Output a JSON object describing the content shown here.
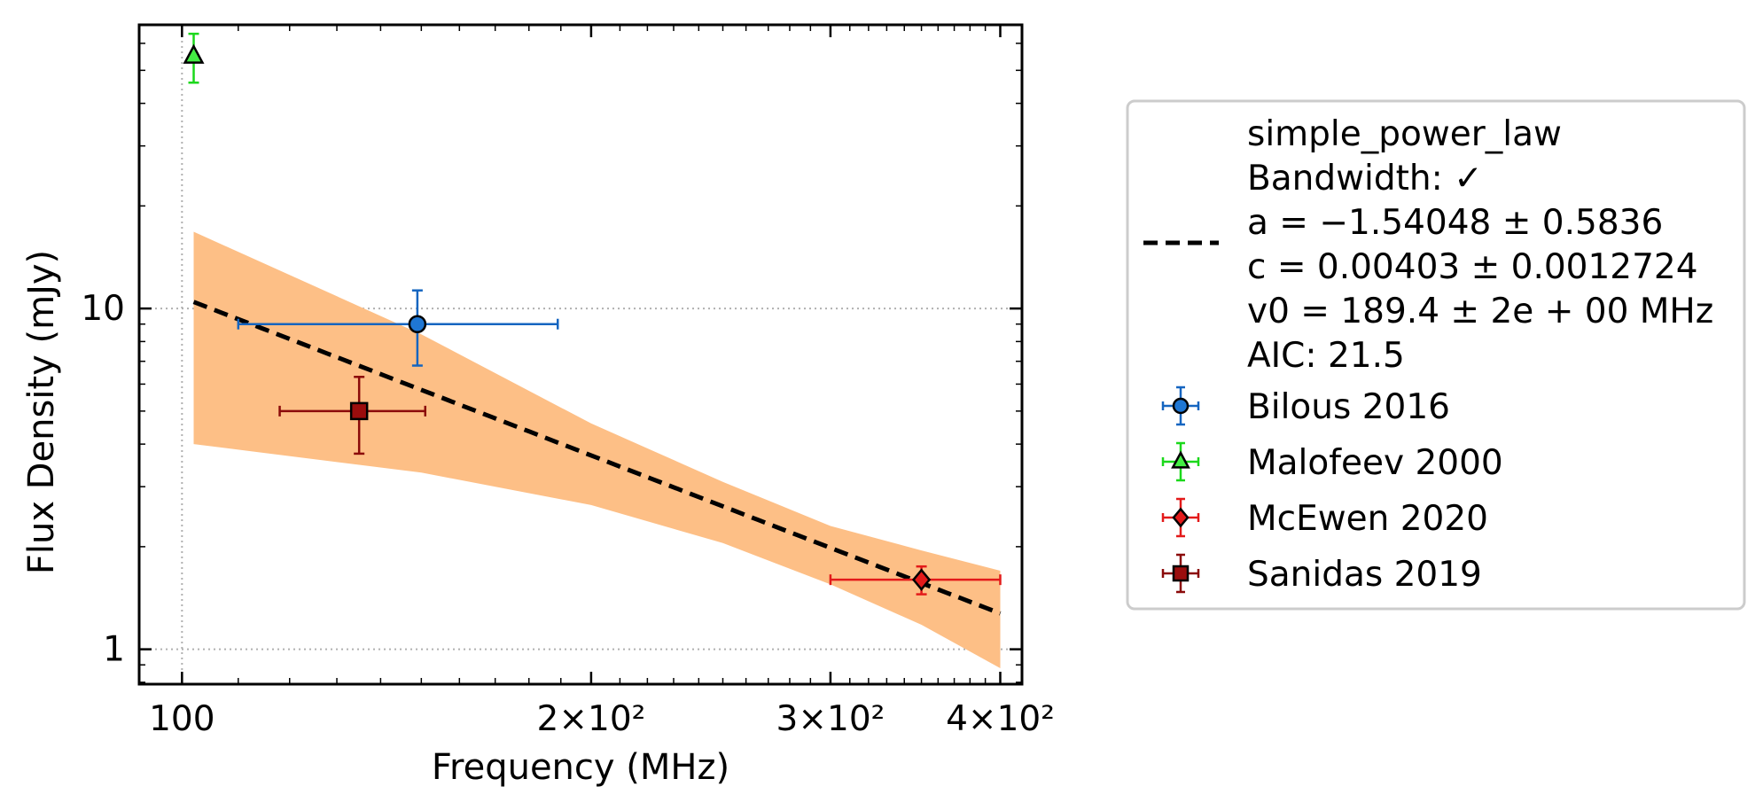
{
  "chart_data": {
    "type": "scatter",
    "xlabel": "Frequency (MHz)",
    "ylabel": "Flux Density (mJy)",
    "xscale": "log",
    "yscale": "log",
    "xlim": [
      93,
      415
    ],
    "ylim": [
      0.79,
      68
    ],
    "grid": true,
    "x_ticks": [
      {
        "value": 100,
        "label": "100"
      },
      {
        "value": 200,
        "label": "2×10²"
      },
      {
        "value": 300,
        "label": "3×10²"
      },
      {
        "value": 400,
        "label": "4×10²"
      }
    ],
    "y_ticks": [
      {
        "value": 1,
        "label": "1"
      },
      {
        "value": 10,
        "label": "10"
      }
    ],
    "legend_position": "outside-right",
    "fit": {
      "model": "simple_power_law",
      "legend_lines": [
        "simple_power_law",
        "Bandwidth: ✓",
        "a = −1.54048 ± 0.5836",
        "c = 0.00403 ± 0.0012724",
        "v0 = 189.4 ± 2e + 00 MHz",
        "AIC: 21.5"
      ],
      "a": -1.54048,
      "c": 0.00403,
      "v0": 189.4,
      "x_range": [
        102,
        400
      ],
      "line_color": "#000000",
      "band_color": "#fdbf86",
      "band_lower": [
        [
          102,
          4.0
        ],
        [
          150,
          3.3
        ],
        [
          200,
          2.65
        ],
        [
          250,
          2.05
        ],
        [
          300,
          1.55
        ],
        [
          350,
          1.18
        ],
        [
          400,
          0.88
        ]
      ],
      "band_upper": [
        [
          102,
          16.8
        ],
        [
          150,
          8.4
        ],
        [
          200,
          4.6
        ],
        [
          250,
          3.1
        ],
        [
          300,
          2.3
        ],
        [
          350,
          1.95
        ],
        [
          400,
          1.7
        ]
      ]
    },
    "series": [
      {
        "name": "Bilous 2016",
        "marker": "circle",
        "color": "#1565c0",
        "fill": "#1f77d4",
        "points": [
          {
            "x": 149,
            "y": 9.0,
            "xerr": [
              110,
              189
            ],
            "yerr": [
              6.8,
              11.3
            ]
          }
        ]
      },
      {
        "name": "Malofeev 2000",
        "marker": "triangle",
        "color": "#1bd81b",
        "fill": "#44ee44",
        "points": [
          {
            "x": 102,
            "y": 55,
            "xerr": null,
            "yerr": [
              46,
              64
            ]
          }
        ]
      },
      {
        "name": "McEwen 2020",
        "marker": "diamond",
        "color": "#e31a1a",
        "fill": "#e31a1a",
        "points": [
          {
            "x": 350,
            "y": 1.6,
            "xerr": [
              300,
              400
            ],
            "yerr": [
              1.45,
              1.75
            ]
          }
        ]
      },
      {
        "name": "Sanidas 2019",
        "marker": "square",
        "color": "#8b0a0a",
        "fill": "#9b0d0d",
        "points": [
          {
            "x": 135,
            "y": 5.0,
            "xerr": [
              118,
              151
            ],
            "yerr": [
              3.75,
              6.3
            ]
          }
        ]
      }
    ]
  }
}
